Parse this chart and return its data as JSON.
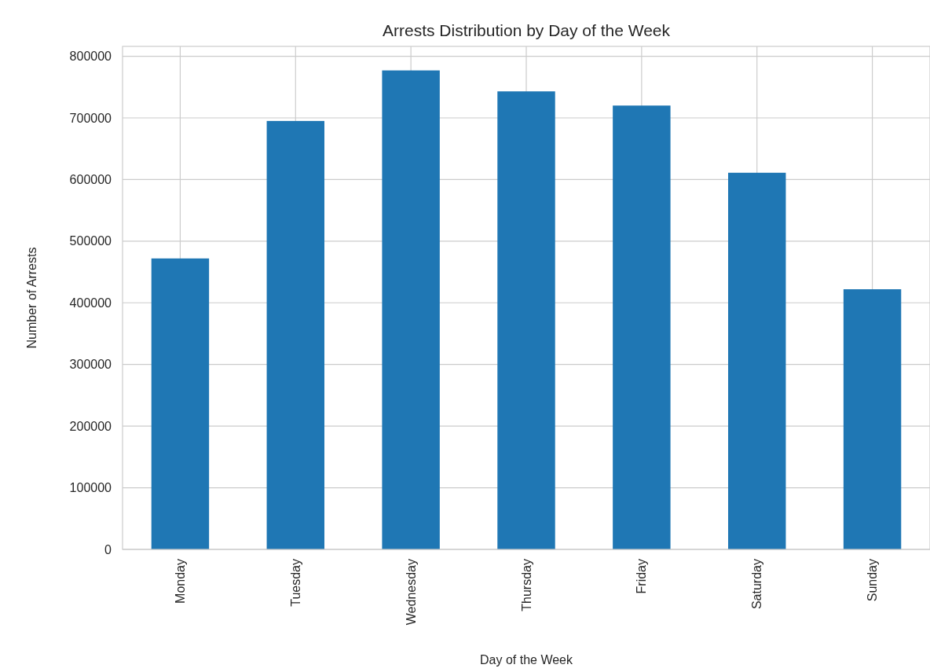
{
  "chart_data": {
    "type": "bar",
    "title": "Arrests Distribution by Day of the Week",
    "xlabel": "Day of the Week",
    "ylabel": "Number of Arrests",
    "categories": [
      "Monday",
      "Tuesday",
      "Wednesday",
      "Thursday",
      "Friday",
      "Saturday",
      "Sunday"
    ],
    "values": [
      472000,
      695000,
      777000,
      743000,
      720000,
      611000,
      422000
    ],
    "color": "#1f77b4",
    "ylim": [
      0,
      816000
    ],
    "yticks": [
      0,
      100000,
      200000,
      300000,
      400000,
      500000,
      600000,
      700000,
      800000
    ],
    "grid": true
  }
}
